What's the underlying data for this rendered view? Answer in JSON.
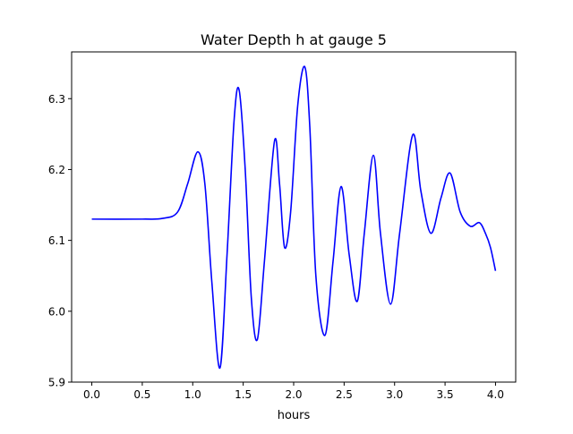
{
  "chart_data": {
    "type": "line",
    "title": "Water Depth h at gauge 5",
    "xlabel": "hours",
    "ylabel": "",
    "xlim": [
      -0.2,
      4.2
    ],
    "ylim": [
      5.9,
      6.366
    ],
    "xticks": [
      0.0,
      0.5,
      1.0,
      1.5,
      2.0,
      2.5,
      3.0,
      3.5,
      4.0
    ],
    "xtick_labels": [
      "0.0",
      "0.5",
      "1.0",
      "1.5",
      "2.0",
      "2.5",
      "3.0",
      "3.5",
      "4.0"
    ],
    "yticks": [
      5.9,
      6.0,
      6.1,
      6.2,
      6.3
    ],
    "ytick_labels": [
      "5.9",
      "6.0",
      "6.1",
      "6.2",
      "6.3"
    ],
    "grid": false,
    "series": [
      {
        "color": "#0000ff",
        "x": [
          0.0,
          0.5,
          0.7,
          0.85,
          0.95,
          1.05,
          1.12,
          1.19,
          1.27,
          1.34,
          1.41,
          1.46,
          1.52,
          1.58,
          1.64,
          1.71,
          1.81,
          1.86,
          1.91,
          1.97,
          2.04,
          2.11,
          2.16,
          2.22,
          2.31,
          2.39,
          2.47,
          2.55,
          2.63,
          2.7,
          2.79,
          2.86,
          2.96,
          3.05,
          3.18,
          3.26,
          3.36,
          3.46,
          3.55,
          3.65,
          3.75,
          3.84,
          3.9,
          3.95,
          4.0
        ],
        "y": [
          6.13,
          6.13,
          6.131,
          6.14,
          6.18,
          6.225,
          6.18,
          6.04,
          5.92,
          6.08,
          6.27,
          6.312,
          6.2,
          6.02,
          5.96,
          6.07,
          6.24,
          6.18,
          6.09,
          6.14,
          6.29,
          6.345,
          6.26,
          6.05,
          5.966,
          6.07,
          6.176,
          6.08,
          6.014,
          6.11,
          6.22,
          6.11,
          6.01,
          6.11,
          6.249,
          6.17,
          6.11,
          6.16,
          6.195,
          6.14,
          6.12,
          6.125,
          6.11,
          6.09,
          6.057
        ]
      }
    ]
  }
}
